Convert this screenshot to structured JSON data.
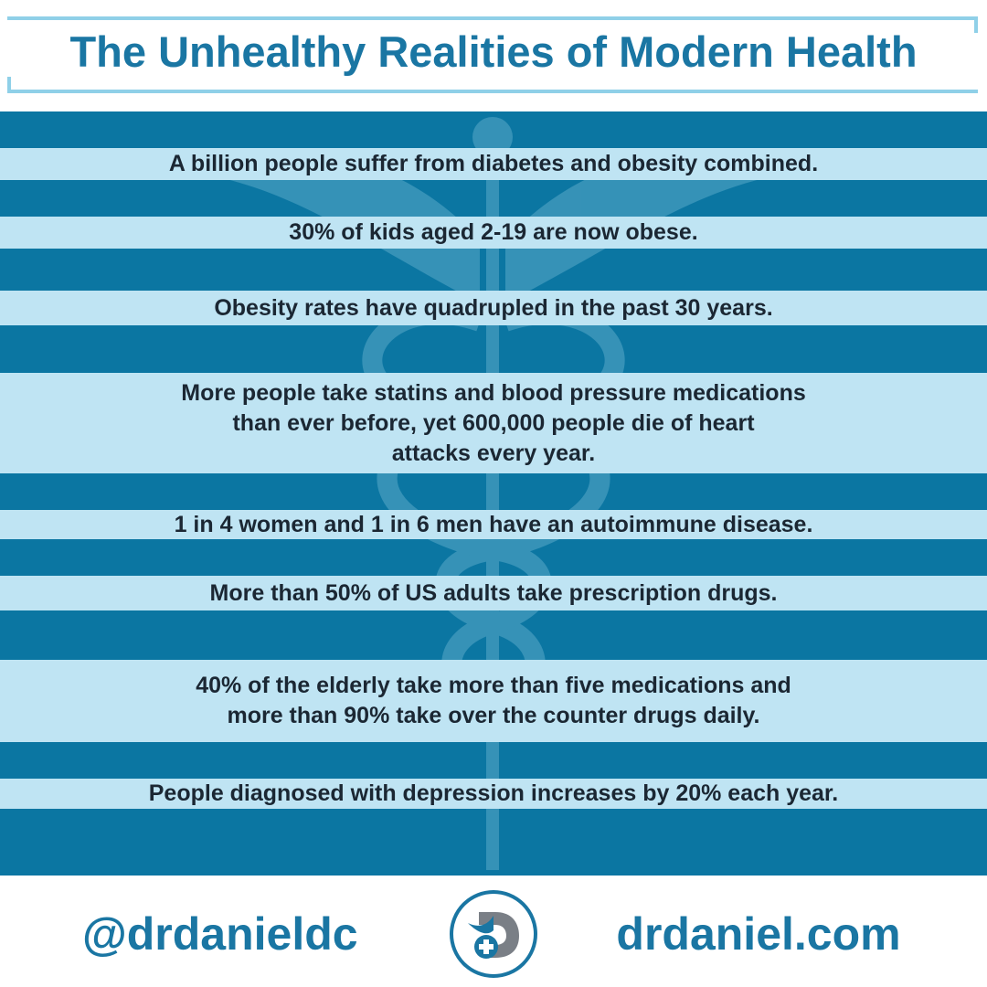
{
  "header": {
    "title": "The Unhealthy Realities of Modern Health"
  },
  "facts": [
    {
      "lines": [
        "A billion people suffer from diabetes and obesity combined."
      ]
    },
    {
      "lines": [
        "30% of kids aged 2-19 are now obese."
      ]
    },
    {
      "lines": [
        "Obesity rates have quadrupled in the past 30 years."
      ]
    },
    {
      "lines": [
        "More people take statins and blood pressure medications",
        "than ever before, yet 600,000 people die of heart",
        "attacks every year."
      ]
    },
    {
      "lines": [
        "1 in 4 women and 1 in 6 men have an autoimmune disease."
      ]
    },
    {
      "lines": [
        "More than 50% of US adults take prescription drugs."
      ]
    },
    {
      "lines": [
        "40% of the elderly take more than five medications and",
        "more than 90% take over the counter drugs daily."
      ]
    },
    {
      "lines": [
        "People diagnosed with depression increases by 20% each year."
      ]
    }
  ],
  "footer": {
    "handle": "@drdanieldc",
    "website": "drdaniel.com"
  }
}
